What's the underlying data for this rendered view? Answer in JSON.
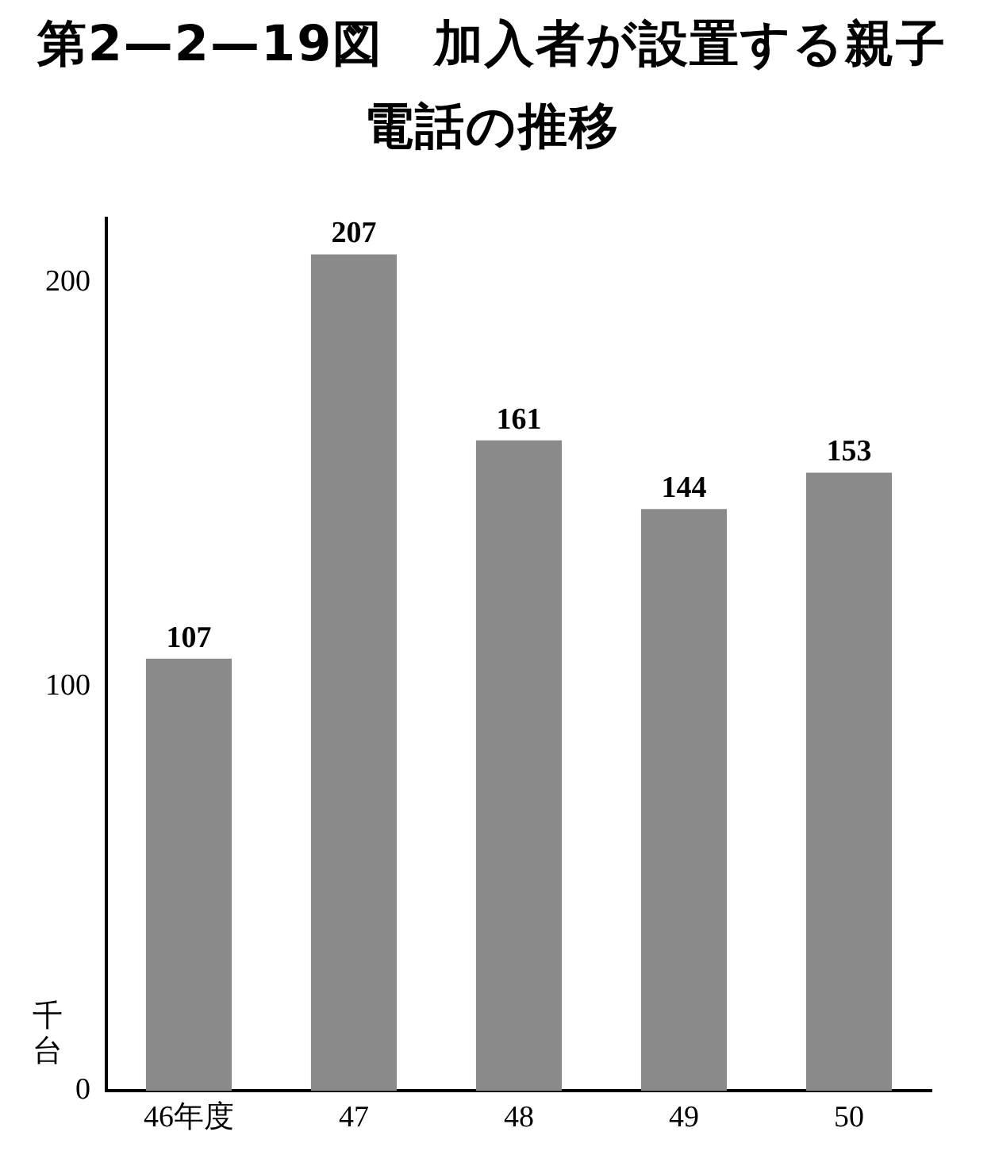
{
  "chart_data": {
    "type": "bar",
    "title": "第2—2—19図　加入者が設置する親子電話の推移",
    "ylabel": "千台",
    "categories": [
      "46年度",
      "47",
      "48",
      "49",
      "50"
    ],
    "values": [
      107,
      207,
      161,
      144,
      153
    ],
    "color": "#8a8a8a",
    "ylim": [
      0,
      216
    ],
    "yticks": [
      0,
      100,
      200
    ],
    "grid": false,
    "legend": false,
    "data_labels": true
  }
}
